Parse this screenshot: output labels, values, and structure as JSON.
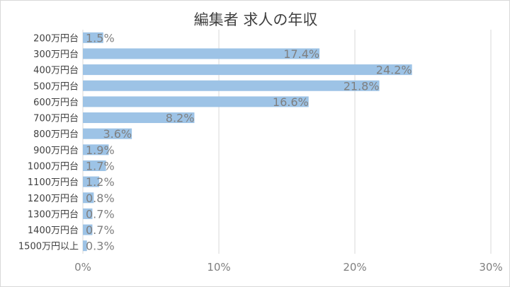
{
  "chart_data": {
    "type": "bar",
    "orientation": "horizontal",
    "title": "編集者 求人の年収",
    "categories": [
      "200万円台",
      "300万円台",
      "400万円台",
      "500万円台",
      "600万円台",
      "700万円台",
      "800万円台",
      "900万円台",
      "1000万円台",
      "1100万円台",
      "1200万円台",
      "1300万円台",
      "1400万円台",
      "1500万円以上"
    ],
    "values": [
      1.5,
      17.4,
      24.2,
      21.8,
      16.6,
      8.2,
      3.6,
      1.9,
      1.7,
      1.2,
      0.8,
      0.7,
      0.7,
      0.3
    ],
    "data_labels": [
      "1.5%",
      "17.4%",
      "24.2%",
      "21.8%",
      "16.6%",
      "8.2%",
      "3.6%",
      "1.9%",
      "1.7%",
      "1.2%",
      "0.8%",
      "0.7%",
      "0.7%",
      "0.3%"
    ],
    "xlim": [
      0,
      30
    ],
    "x_ticks": [
      0,
      10,
      20,
      30
    ],
    "x_tick_labels": [
      "0%",
      "10%",
      "20%",
      "30%"
    ],
    "xlabel": "",
    "ylabel": "",
    "grid": "vertical",
    "legend": "none",
    "colors": {
      "bar": "#9DC3E6",
      "grid": "#d9d9d9",
      "label": "#7f7f7f",
      "text": "#404040"
    }
  }
}
